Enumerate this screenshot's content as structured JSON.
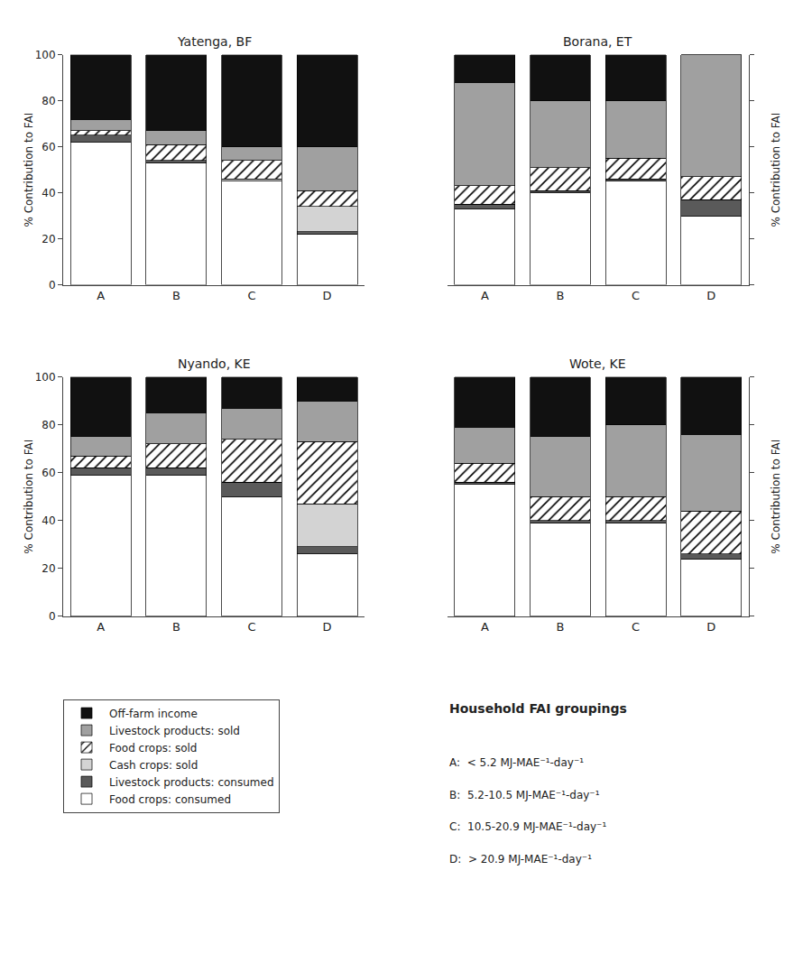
{
  "chart_data": [
    {
      "type": "bar",
      "title": "Yatenga, BF",
      "ylabel": "% Contribution to FAI",
      "categories": [
        "A",
        "B",
        "C",
        "D"
      ],
      "stacked": true,
      "grid": false,
      "legend": "bottom",
      "ylim": [
        0,
        100
      ],
      "yticks": [
        0,
        20,
        40,
        60,
        80,
        100
      ],
      "series": [
        {
          "name": "Food crops: consumed",
          "color": "#ffffff",
          "values": [
            62,
            53,
            45,
            22
          ]
        },
        {
          "name": "Livestock products: consumed",
          "color": "#5a5a5a",
          "values": [
            3,
            1,
            0,
            1
          ]
        },
        {
          "name": "Cash crops: sold",
          "color": "#d3d3d3",
          "values": [
            0,
            0,
            1,
            11
          ]
        },
        {
          "name": "Food crops: sold",
          "color": "#ffffff",
          "marker": "hatch",
          "values": [
            2,
            7,
            8,
            7
          ]
        },
        {
          "name": "Livestock products: sold",
          "color": "#a0a0a0",
          "values": [
            5,
            6,
            6,
            19
          ]
        },
        {
          "name": "Off-farm income",
          "color": "#111111",
          "values": [
            28,
            33,
            40,
            40
          ]
        }
      ]
    },
    {
      "type": "bar",
      "title": "Borana, ET",
      "ylabel": "% Contribution to FAI",
      "categories": [
        "A",
        "B",
        "C",
        "D"
      ],
      "stacked": true,
      "grid": false,
      "tick_labels": "x",
      "ylim": [
        0,
        100
      ],
      "yticks": [
        0,
        20,
        40,
        60,
        80,
        100
      ],
      "series": [
        {
          "name": "Food crops: consumed",
          "color": "#ffffff",
          "values": [
            33,
            40,
            45,
            30
          ]
        },
        {
          "name": "Livestock products: consumed",
          "color": "#5a5a5a",
          "values": [
            2,
            1,
            1,
            7
          ]
        },
        {
          "name": "Cash crops: sold",
          "color": "#d3d3d3",
          "values": [
            0,
            0,
            0,
            0
          ]
        },
        {
          "name": "Food crops: sold",
          "color": "#ffffff",
          "marker": "hatch",
          "values": [
            8,
            10,
            9,
            10
          ]
        },
        {
          "name": "Livestock products: sold",
          "color": "#a0a0a0",
          "values": [
            45,
            29,
            25,
            53
          ]
        },
        {
          "name": "Off-farm income",
          "color": "#111111",
          "values": [
            12,
            20,
            20,
            0
          ]
        }
      ]
    },
    {
      "type": "bar",
      "title": "Nyando, KE",
      "ylabel": "% Contribution to FAI",
      "categories": [
        "A",
        "B",
        "C",
        "D"
      ],
      "stacked": true,
      "grid": false,
      "ylim": [
        0,
        100
      ],
      "yticks": [
        0,
        20,
        40,
        60,
        80,
        100
      ],
      "series": [
        {
          "name": "Food crops: consumed",
          "color": "#ffffff",
          "values": [
            59,
            59,
            50,
            26
          ]
        },
        {
          "name": "Livestock products: consumed",
          "color": "#5a5a5a",
          "values": [
            3,
            3,
            6,
            3
          ]
        },
        {
          "name": "Cash crops: sold",
          "color": "#d3d3d3",
          "values": [
            0,
            0,
            0,
            18
          ]
        },
        {
          "name": "Food crops: sold",
          "color": "#ffffff",
          "marker": "hatch",
          "values": [
            5,
            10,
            18,
            26
          ]
        },
        {
          "name": "Livestock products: sold",
          "color": "#a0a0a0",
          "values": [
            8,
            13,
            13,
            17
          ]
        },
        {
          "name": "Off-farm income",
          "color": "#111111",
          "values": [
            25,
            15,
            13,
            10
          ]
        }
      ]
    },
    {
      "type": "bar",
      "title": "Wote, KE",
      "ylabel": "% Contribution to FAI",
      "categories": [
        "A",
        "B",
        "C",
        "D"
      ],
      "stacked": true,
      "grid": false,
      "tick_labels": "x",
      "ylim": [
        0,
        100
      ],
      "yticks": [
        0,
        20,
        40,
        60,
        80,
        100
      ],
      "series": [
        {
          "name": "Food crops: consumed",
          "color": "#ffffff",
          "values": [
            55,
            39,
            39,
            24
          ]
        },
        {
          "name": "Livestock products: consumed",
          "color": "#5a5a5a",
          "values": [
            1,
            1,
            1,
            2
          ]
        },
        {
          "name": "Cash crops: sold",
          "color": "#d3d3d3",
          "values": [
            0,
            0,
            0,
            0
          ]
        },
        {
          "name": "Food crops: sold",
          "color": "#ffffff",
          "marker": "hatch",
          "values": [
            8,
            10,
            10,
            18
          ]
        },
        {
          "name": "Livestock products: sold",
          "color": "#a0a0a0",
          "values": [
            15,
            25,
            30,
            32
          ]
        },
        {
          "name": "Off-farm income",
          "color": "#111111",
          "values": [
            21,
            25,
            20,
            24
          ]
        }
      ],
      "annotations": [
        "Household FAI groupings",
        "A:  < 5.2 MJ-MAE⁻¹-day⁻¹",
        "B:  5.2-10.5 MJ-MAE⁻¹-day⁻¹",
        "C:  10.5-20.9 MJ-MAE⁻¹-day⁻¹",
        "D:  > 20.9 MJ-MAE⁻¹-day⁻¹"
      ]
    }
  ]
}
